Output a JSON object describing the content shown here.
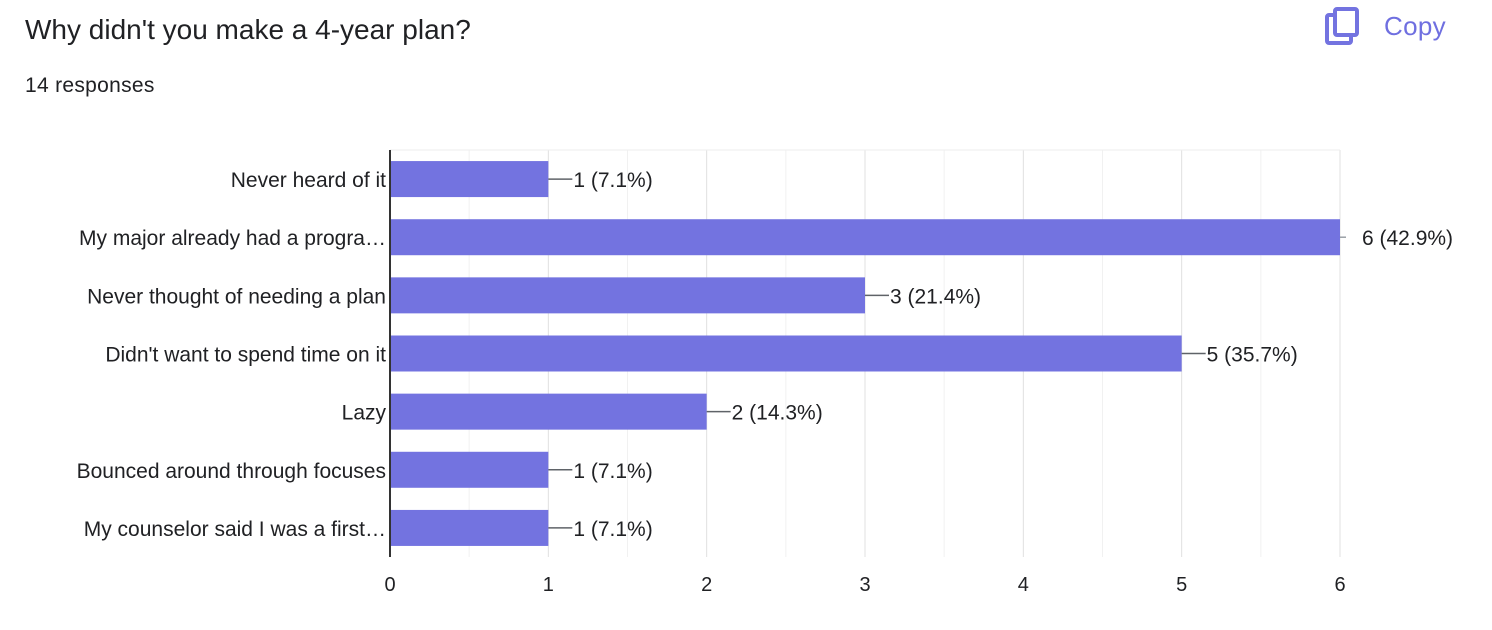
{
  "header": {
    "title": "Why didn't you make a 4-year plan?",
    "responses": "14 responses",
    "copy_label": "Copy",
    "copy_icon": "copy-icon",
    "accent_color": "#7373e0"
  },
  "chart_data": {
    "type": "bar",
    "orientation": "horizontal",
    "categories": [
      "Never heard of it",
      "My major already had a progra…",
      "Never thought of needing a plan",
      "Didn't want to spend time on it",
      "Lazy",
      "Bounced around through focuses",
      "My counselor said I was a first…"
    ],
    "values": [
      1,
      6,
      3,
      5,
      2,
      1,
      1
    ],
    "data_labels": [
      "1 (7.1%)",
      "6 (42.9%)",
      "3 (21.4%)",
      "5 (35.7%)",
      "2 (14.3%)",
      "1 (7.1%)",
      "1 (7.1%)"
    ],
    "xlim": [
      0,
      6
    ],
    "xticks": [
      "0",
      "1",
      "2",
      "3",
      "4",
      "5",
      "6"
    ],
    "grid": true,
    "bar_color": "#7373e0"
  }
}
